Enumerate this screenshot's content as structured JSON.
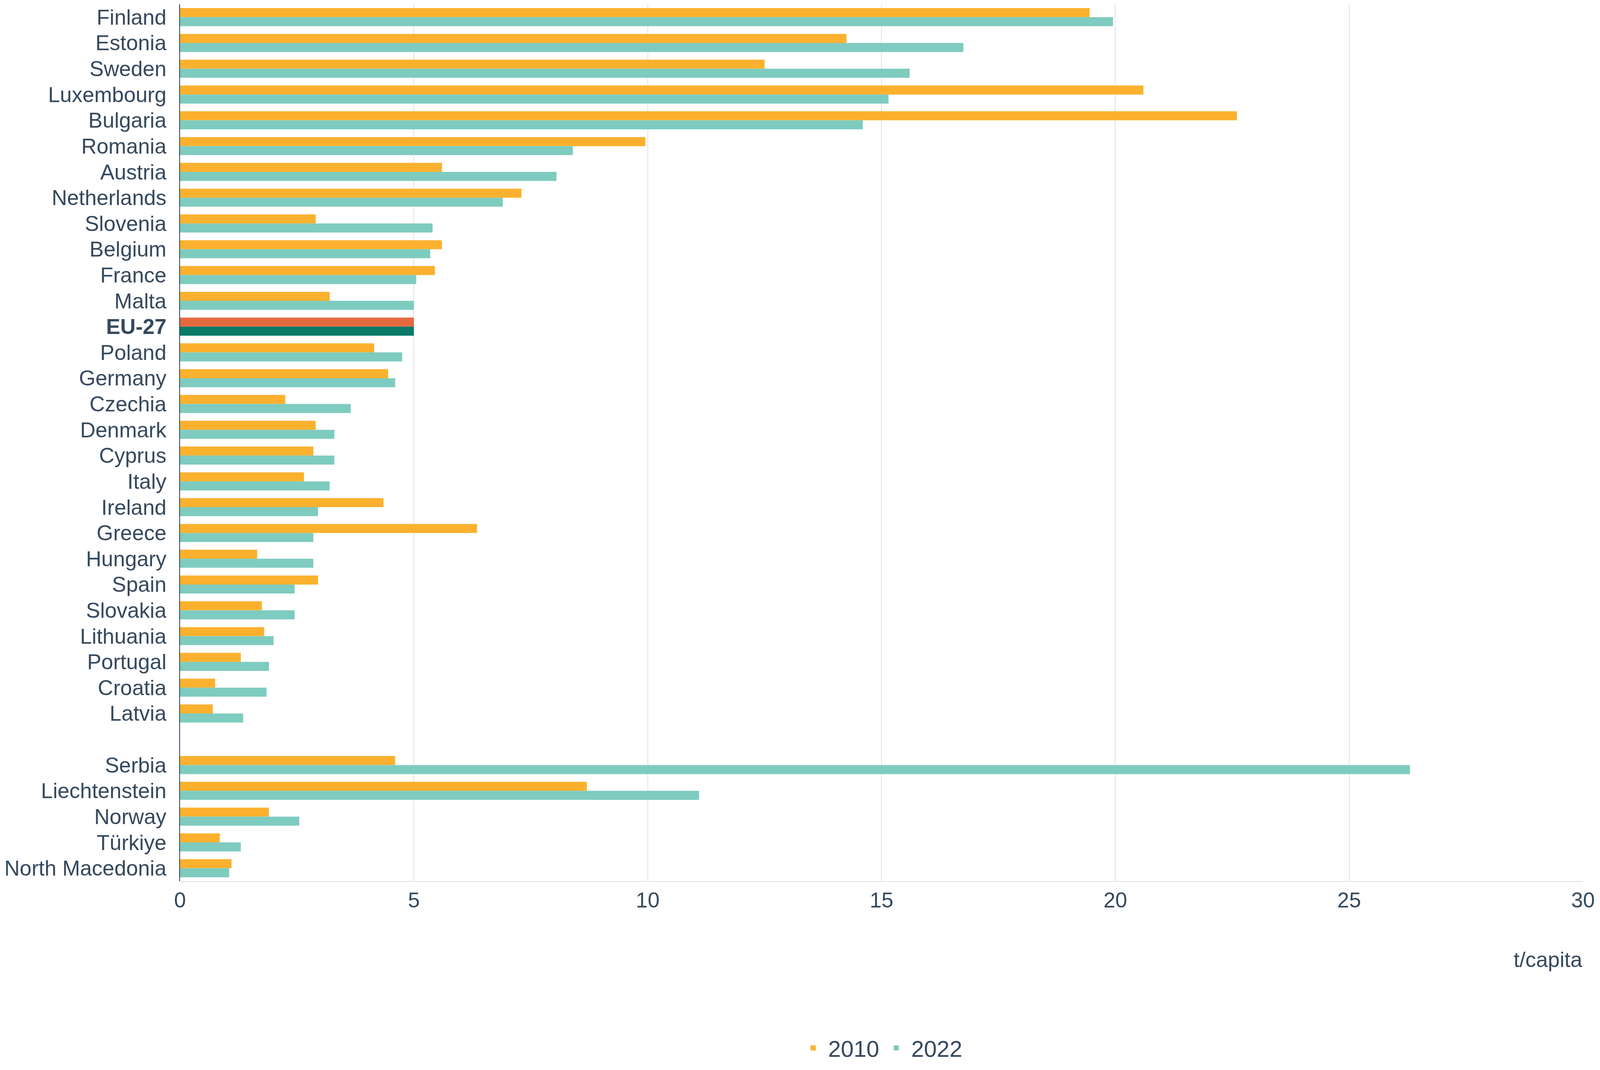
{
  "chart_data": {
    "type": "bar",
    "orientation": "horizontal",
    "x_label": "t/capita",
    "categories": [
      "Finland",
      "Estonia",
      "Sweden",
      "Luxembourg",
      "Bulgaria",
      "Romania",
      "Austria",
      "Netherlands",
      "Slovenia",
      "Belgium",
      "France",
      "Malta",
      "EU-27",
      "Poland",
      "Germany",
      "Czechia",
      "Denmark",
      "Cyprus",
      "Italy",
      "Ireland",
      "Greece",
      "Hungary",
      "Spain",
      "Slovakia",
      "Lithuania",
      "Portugal",
      "Croatia",
      "Latvia",
      null,
      "Serbia",
      "Liechtenstein",
      "Norway",
      "Türkiye",
      "North Macedonia"
    ],
    "series": [
      {
        "name": "2010",
        "color": "#fbb12e",
        "colors": [
          "#fbb12e",
          "#fbb12e",
          "#fbb12e",
          "#fbb12e",
          "#fbb12e",
          "#fbb12e",
          "#fbb12e",
          "#fbb12e",
          "#fbb12e",
          "#fbb12e",
          "#fbb12e",
          "#fbb12e",
          "#e5693f",
          "#fbb12e",
          "#fbb12e",
          "#fbb12e",
          "#fbb12e",
          "#fbb12e",
          "#fbb12e",
          "#fbb12e",
          "#fbb12e",
          "#fbb12e",
          "#fbb12e",
          "#fbb12e",
          "#fbb12e",
          "#fbb12e",
          "#fbb12e",
          "#fbb12e",
          "#fbb12e",
          "#fbb12e",
          "#fbb12e",
          "#fbb12e",
          "#fbb12e",
          "#fbb12e"
        ],
        "values": [
          19.45,
          14.25,
          12.5,
          20.6,
          22.6,
          9.95,
          5.6,
          7.3,
          2.9,
          5.6,
          5.45,
          3.2,
          5.0,
          4.15,
          4.45,
          2.25,
          2.9,
          2.85,
          2.65,
          4.35,
          6.35,
          1.65,
          2.95,
          1.75,
          1.8,
          1.3,
          0.75,
          0.7,
          null,
          4.6,
          8.7,
          1.9,
          0.85,
          1.1
        ]
      },
      {
        "name": "2022",
        "color": "#7ecbbf",
        "colors": [
          "#7ecbbf",
          "#7ecbbf",
          "#7ecbbf",
          "#7ecbbf",
          "#7ecbbf",
          "#7ecbbf",
          "#7ecbbf",
          "#7ecbbf",
          "#7ecbbf",
          "#7ecbbf",
          "#7ecbbf",
          "#7ecbbf",
          "#0b7a68",
          "#7ecbbf",
          "#7ecbbf",
          "#7ecbbf",
          "#7ecbbf",
          "#7ecbbf",
          "#7ecbbf",
          "#7ecbbf",
          "#7ecbbf",
          "#7ecbbf",
          "#7ecbbf",
          "#7ecbbf",
          "#7ecbbf",
          "#7ecbbf",
          "#7ecbbf",
          "#7ecbbf",
          "#7ecbbf",
          "#7ecbbf",
          "#7ecbbf",
          "#7ecbbf",
          "#7ecbbf",
          "#7ecbbf"
        ],
        "values": [
          19.95,
          16.75,
          15.6,
          15.15,
          14.6,
          8.4,
          8.05,
          6.9,
          5.4,
          5.35,
          5.05,
          5.0,
          5.0,
          4.75,
          4.6,
          3.65,
          3.3,
          3.3,
          3.2,
          2.95,
          2.85,
          2.85,
          2.45,
          2.45,
          2.0,
          1.9,
          1.85,
          1.35,
          null,
          26.3,
          11.1,
          2.55,
          1.3,
          1.05
        ]
      }
    ],
    "xlim": [
      0,
      30
    ],
    "xticks": [
      0,
      5,
      10,
      15,
      20,
      25,
      30
    ],
    "grid": true,
    "legend": "bottom"
  }
}
